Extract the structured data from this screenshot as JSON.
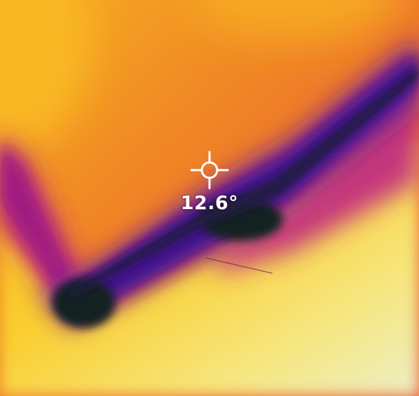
{
  "measurement": {
    "spot_temperature": "12.6°",
    "reticle_icon": "crosshair-icon"
  },
  "palette": {
    "name": "iron",
    "hot_white": "#f4f0c8",
    "hot_yellow": "#fcd22a",
    "warm_orange": "#f6a21c",
    "mid_orange": "#f07a22",
    "red_orange": "#ea5a2e",
    "magenta": "#b01878",
    "purple": "#5a0c9a",
    "cold_dark": "#0a1a18"
  }
}
